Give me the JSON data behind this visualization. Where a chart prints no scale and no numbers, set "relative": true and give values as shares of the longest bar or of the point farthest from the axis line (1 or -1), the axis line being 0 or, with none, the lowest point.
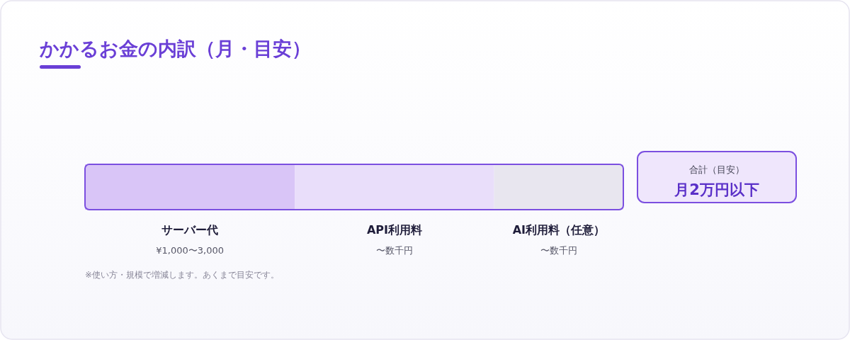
{
  "chart_data": {
    "type": "bar",
    "title": "かかるお金の内訳（月・目安）",
    "orientation": "horizontal",
    "stacked": true,
    "relative": true,
    "categories": [
      null
    ],
    "series": [
      {
        "name": "サーバー代",
        "color": "#d9c5f7",
        "values": [
          0.39
        ]
      },
      {
        "name": "API利用料",
        "color": "#e9defa",
        "values": [
          0.37
        ]
      },
      {
        "name": "AI利用料（任意）",
        "color": "#e8e6ef",
        "values": [
          0.24
        ]
      }
    ],
    "annotations": [
      "合計（目安）",
      "月2万円以下",
      "¥1,000〜3,000",
      "〜数千円",
      "〜数千円",
      "※使い方・規模で増減します。あくまで目安です。"
    ]
  }
}
